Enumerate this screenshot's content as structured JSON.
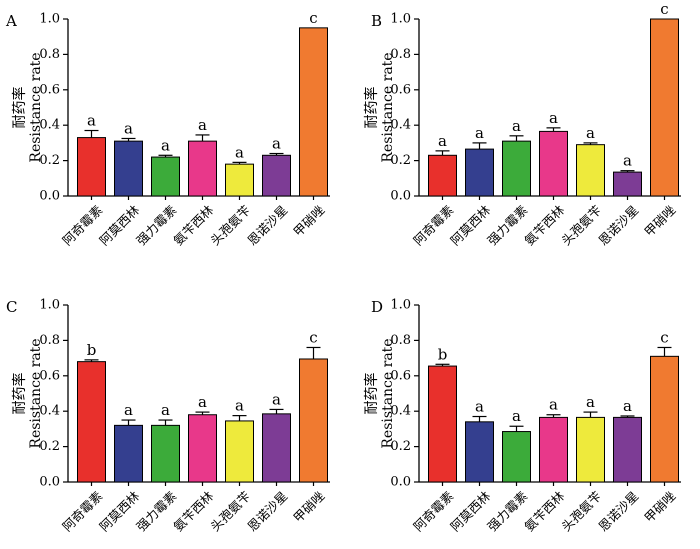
{
  "chart_data": [
    {
      "type": "bar",
      "panel": "A",
      "categories": [
        "阿奇霉素",
        "阿莫西林",
        "强力霉素",
        "氨苄西林",
        "头孢氨苄",
        "恩诺沙星",
        "甲硝唑"
      ],
      "values": [
        0.33,
        0.31,
        0.22,
        0.31,
        0.18,
        0.23,
        0.95
      ],
      "errors": [
        0.04,
        0.015,
        0.01,
        0.035,
        0.01,
        0.01,
        0.0
      ],
      "significance": [
        "a",
        "a",
        "a",
        "a",
        "a",
        "a",
        "c"
      ],
      "ylabel_cn": "耐药率",
      "ylabel_en": "Resistance rate",
      "ylim": [
        0,
        1.0
      ],
      "yticks": [
        "0.0",
        "0.2",
        "0.4",
        "0.6",
        "0.8",
        "1.0"
      ]
    },
    {
      "type": "bar",
      "panel": "B",
      "categories": [
        "阿奇霉素",
        "阿莫西林",
        "强力霉素",
        "氨苄西林",
        "头孢氨苄",
        "恩诺沙星",
        "甲硝唑"
      ],
      "values": [
        0.23,
        0.265,
        0.31,
        0.365,
        0.29,
        0.135,
        1.0
      ],
      "errors": [
        0.025,
        0.035,
        0.03,
        0.02,
        0.01,
        0.008,
        0.0
      ],
      "significance": [
        "a",
        "a",
        "a",
        "a",
        "a",
        "a",
        "c"
      ],
      "ylabel_cn": "耐药率",
      "ylabel_en": "Resistance rate",
      "ylim": [
        0,
        1.0
      ],
      "yticks": [
        "0.0",
        "0.2",
        "0.4",
        "0.6",
        "0.8",
        "1.0"
      ]
    },
    {
      "type": "bar",
      "panel": "C",
      "categories": [
        "阿奇霉素",
        "阿莫西林",
        "强力霉素",
        "氨苄西林",
        "头孢氨苄",
        "恩诺沙星",
        "甲硝唑"
      ],
      "values": [
        0.68,
        0.32,
        0.32,
        0.38,
        0.345,
        0.385,
        0.695
      ],
      "errors": [
        0.01,
        0.03,
        0.03,
        0.015,
        0.03,
        0.025,
        0.065
      ],
      "significance": [
        "b",
        "a",
        "a",
        "a",
        "a",
        "a",
        "c"
      ],
      "ylabel_cn": "耐药率",
      "ylabel_en": "Resistance rate",
      "ylim": [
        0,
        1.0
      ],
      "yticks": [
        "0.0",
        "0.2",
        "0.4",
        "0.6",
        "0.8",
        "1.0"
      ]
    },
    {
      "type": "bar",
      "panel": "D",
      "categories": [
        "阿奇霉素",
        "阿莫西林",
        "强力霉素",
        "氨苄西林",
        "头孢氨苄",
        "恩诺沙星",
        "甲硝唑"
      ],
      "values": [
        0.655,
        0.34,
        0.285,
        0.365,
        0.365,
        0.365,
        0.71
      ],
      "errors": [
        0.01,
        0.03,
        0.03,
        0.015,
        0.03,
        0.008,
        0.05
      ],
      "significance": [
        "b",
        "a",
        "a",
        "a",
        "a",
        "a",
        "c"
      ],
      "ylabel_cn": "耐药率",
      "ylabel_en": "Resistance rate",
      "ylim": [
        0,
        1.0
      ],
      "yticks": [
        "0.0",
        "0.2",
        "0.4",
        "0.6",
        "0.8",
        "1.0"
      ]
    }
  ],
  "bar_colors": [
    "#e8302c",
    "#343f8f",
    "#3cab3a",
    "#e8388a",
    "#eeea3c",
    "#7d3c95",
    "#f07a30"
  ]
}
